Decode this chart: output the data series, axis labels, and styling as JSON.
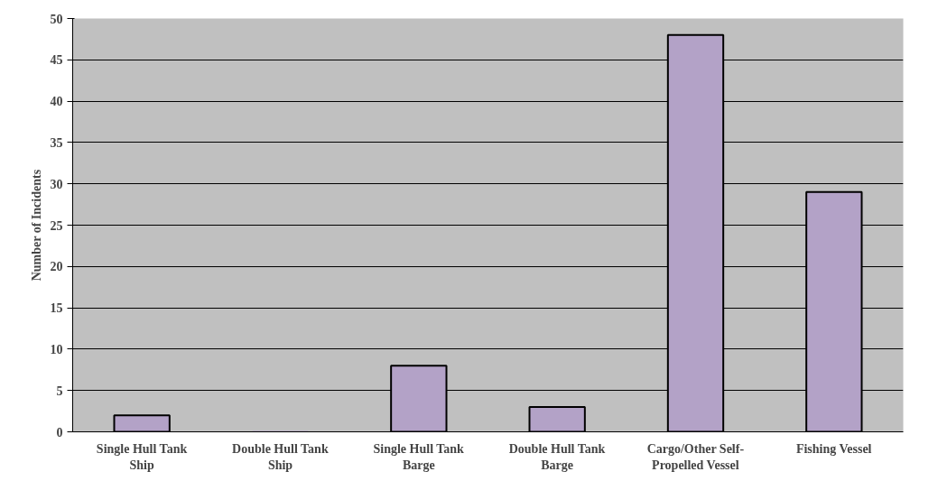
{
  "chart_data": {
    "type": "bar",
    "ylabel": "Number of Incidents",
    "categories": [
      "Single Hull Tank Ship",
      "Double Hull Tank Ship",
      "Single Hull Tank Barge",
      "Double Hull Tank Barge",
      "Cargo/Other Self-Propelled Vessel",
      "Fishing Vessel"
    ],
    "values": [
      2,
      0,
      8,
      3,
      48,
      29
    ],
    "color": "#b3a2c7",
    "ylim": [
      0,
      50
    ],
    "yticks": [
      0,
      5,
      10,
      15,
      20,
      25,
      30,
      35,
      40,
      45,
      50
    ],
    "grid": "y"
  }
}
